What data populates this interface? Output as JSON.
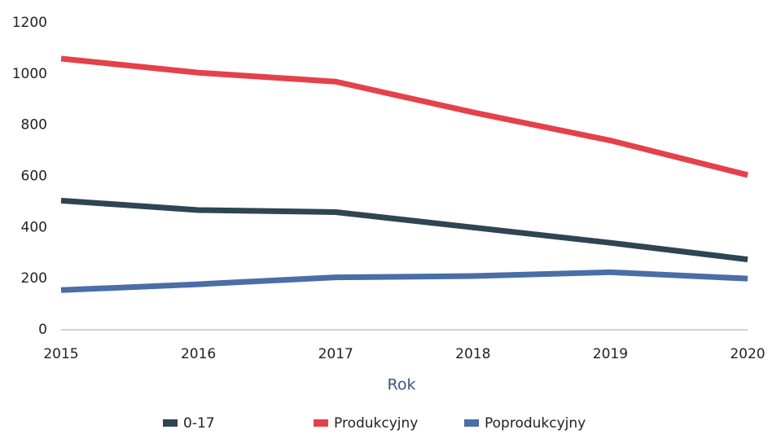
{
  "chart_data": {
    "type": "line",
    "xlabel": "Rok",
    "x": [
      2015,
      2016,
      2017,
      2018,
      2019,
      2020
    ],
    "xlim": [
      2015,
      2020
    ],
    "xticks": [
      2015,
      2016,
      2017,
      2018,
      2019,
      2020
    ],
    "ylim": [
      0,
      1200
    ],
    "yticks": [
      0,
      200,
      400,
      600,
      800,
      1000,
      1200
    ],
    "grid": false,
    "legend": "bottom",
    "series": [
      {
        "name": "0-17",
        "color": "#2e4552",
        "values": [
          505,
          468,
          460,
          400,
          340,
          275
        ]
      },
      {
        "name": "Produkcyjny",
        "color": "#e5414a",
        "values": [
          1060,
          1005,
          970,
          850,
          740,
          605
        ]
      },
      {
        "name": "Poprodukcyjny",
        "color": "#4a6ea6",
        "values": [
          155,
          178,
          205,
          210,
          225,
          200
        ]
      }
    ]
  }
}
